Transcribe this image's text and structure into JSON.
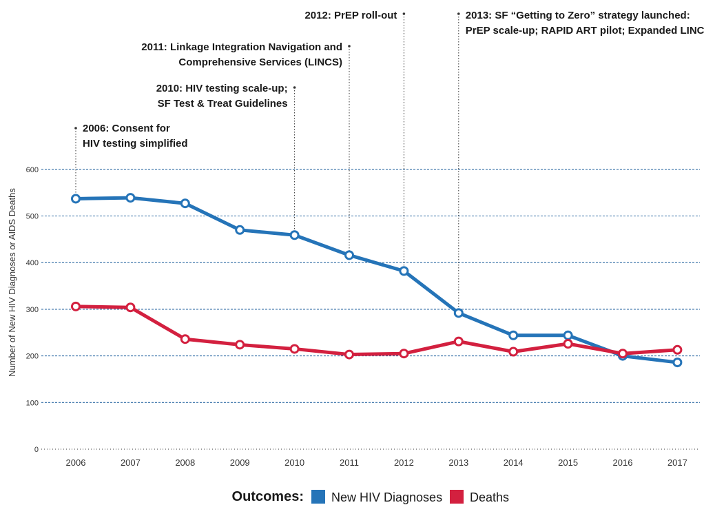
{
  "chart_data": {
    "type": "line",
    "ylabel": "Number of New HIV Diagnoses or AIDS Deaths",
    "xlabel": "",
    "ylim": [
      0,
      600
    ],
    "yticks": [
      0,
      100,
      200,
      300,
      400,
      500,
      600
    ],
    "grid": true,
    "categories": [
      "2006",
      "2007",
      "2008",
      "2009",
      "2010",
      "2011",
      "2012",
      "2013",
      "2014",
      "2015",
      "2016",
      "2017"
    ],
    "series": [
      {
        "name": "New HIV Diagnoses",
        "color": "#2574b8",
        "values": [
          537,
          539,
          527,
          470,
          459,
          416,
          382,
          292,
          244,
          244,
          200,
          186
        ]
      },
      {
        "name": "Deaths",
        "color": "#d3203f",
        "values": [
          306,
          304,
          236,
          224,
          215,
          203,
          205,
          231,
          209,
          226,
          205,
          213
        ]
      }
    ],
    "legend": {
      "title": "Outcomes:",
      "placement": "bottom-center"
    },
    "annotations": [
      {
        "year": "2006",
        "lines": [
          "2006: Consent for",
          "HIV testing simplified"
        ]
      },
      {
        "year": "2010",
        "lines": [
          "2010: HIV testing scale-up;",
          "SF Test & Treat Guidelines"
        ]
      },
      {
        "year": "2011",
        "lines": [
          "2011: Linkage Integration Navigation and",
          "Comprehensive Services (LINCS)"
        ]
      },
      {
        "year": "2012",
        "lines": [
          "2012: PrEP roll-out"
        ]
      },
      {
        "year": "2013",
        "lines": [
          "2013: SF “Getting to Zero” strategy launched:",
          "PrEP scale-up; RAPID ART pilot; Expanded LINCS"
        ]
      }
    ]
  }
}
